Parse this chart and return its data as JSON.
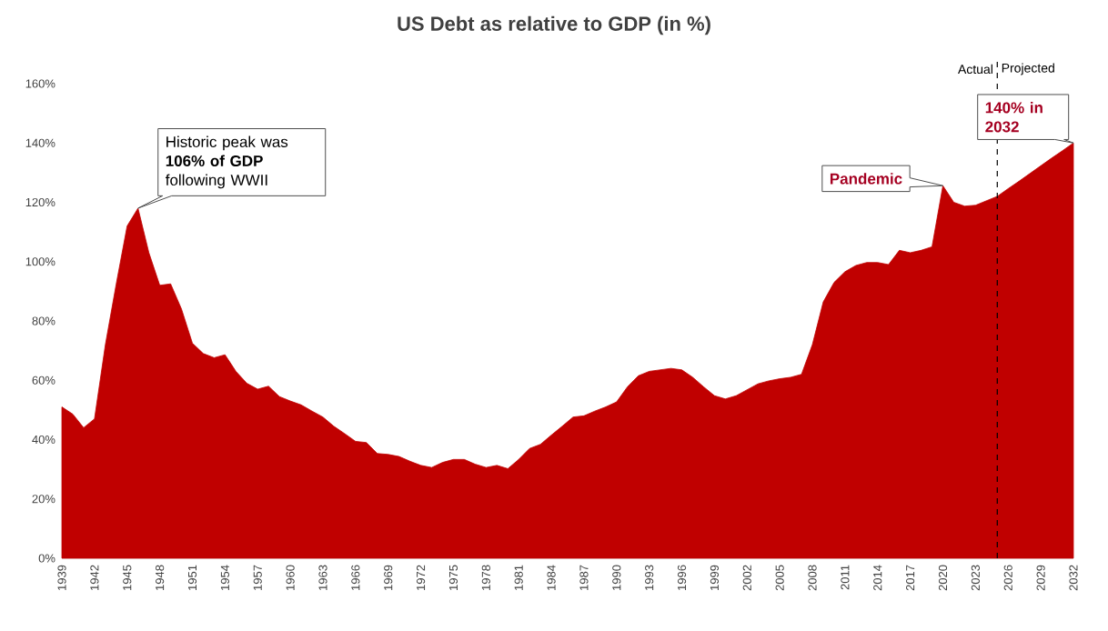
{
  "chart_data": {
    "type": "area",
    "title": "US Debt as relative to GDP (in %)",
    "x": [
      1939,
      1940,
      1941,
      1942,
      1943,
      1944,
      1945,
      1946,
      1947,
      1948,
      1949,
      1950,
      1951,
      1952,
      1953,
      1954,
      1955,
      1956,
      1957,
      1958,
      1959,
      1960,
      1961,
      1962,
      1963,
      1964,
      1965,
      1966,
      1967,
      1968,
      1969,
      1970,
      1971,
      1972,
      1973,
      1974,
      1975,
      1976,
      1977,
      1978,
      1979,
      1980,
      1981,
      1982,
      1983,
      1984,
      1985,
      1986,
      1987,
      1988,
      1989,
      1990,
      1991,
      1992,
      1993,
      1994,
      1995,
      1996,
      1997,
      1998,
      1999,
      2000,
      2001,
      2002,
      2003,
      2004,
      2005,
      2006,
      2007,
      2008,
      2009,
      2010,
      2011,
      2012,
      2013,
      2014,
      2015,
      2016,
      2017,
      2018,
      2019,
      2020,
      2021,
      2022,
      2023,
      2024,
      2025,
      2026,
      2027,
      2028,
      2029,
      2030,
      2031,
      2032
    ],
    "series": [
      {
        "color": "#c00000",
        "values": [
          51,
          48.6,
          44,
          47,
          72,
          92.5,
          112,
          118,
          103,
          92,
          92.5,
          84,
          72.5,
          69,
          67.6,
          68.6,
          63,
          59,
          57,
          58,
          54.5,
          53,
          51.7,
          49.6,
          47.6,
          44.5,
          42,
          39.4,
          39,
          35.3,
          35,
          34.3,
          32.7,
          31.3,
          30.6,
          32.3,
          33.3,
          33.3,
          31.7,
          30.6,
          31.3,
          30.2,
          33.3,
          37,
          38.4,
          41.5,
          44.5,
          47.6,
          48,
          49.6,
          51,
          52.7,
          57.8,
          61.5,
          63,
          63.5,
          64,
          63.5,
          61,
          57.8,
          54.8,
          53.7,
          54.8,
          56.8,
          58.8,
          59.8,
          60.5,
          61,
          62,
          72,
          86.4,
          93,
          96.6,
          98.7,
          99.7,
          99.7,
          99,
          103.8,
          103,
          103.8,
          105,
          125.6,
          120,
          118.7,
          119,
          120.5,
          122,
          124.6,
          127.1,
          129.7,
          132.3,
          134.9,
          137.4,
          140
        ]
      }
    ],
    "xlim": [
      1939,
      2032
    ],
    "xticks": [
      1939,
      1942,
      1945,
      1948,
      1951,
      1954,
      1957,
      1960,
      1963,
      1966,
      1969,
      1972,
      1975,
      1978,
      1981,
      1984,
      1987,
      1990,
      1993,
      1996,
      1999,
      2002,
      2005,
      2008,
      2011,
      2014,
      2017,
      2020,
      2023,
      2026,
      2029,
      2032
    ],
    "ylim": [
      0,
      160
    ],
    "yticks": [
      {
        "value": 0,
        "label": "0%"
      },
      {
        "value": 20,
        "label": "20%"
      },
      {
        "value": 40,
        "label": "40%"
      },
      {
        "value": 60,
        "label": "60%"
      },
      {
        "value": 80,
        "label": "80%"
      },
      {
        "value": 100,
        "label": "100%"
      },
      {
        "value": 120,
        "label": "120%"
      },
      {
        "value": 140,
        "label": "140%"
      },
      {
        "value": 160,
        "label": "160%"
      }
    ],
    "grid": false,
    "ref_lines": [
      {
        "axis": "x",
        "value": 2025,
        "line_style": "dashed",
        "color": "#000000"
      }
    ],
    "annotations": [
      {
        "text": "Historic peak was **106% of GDP** following WWII",
        "x": 1946,
        "y": 118
      },
      {
        "text": "Pandemic",
        "x": 2020,
        "y": 125.6
      },
      {
        "text": "140% in 2032",
        "x": 2032,
        "y": 140
      },
      "Actual",
      "Projected"
    ]
  }
}
